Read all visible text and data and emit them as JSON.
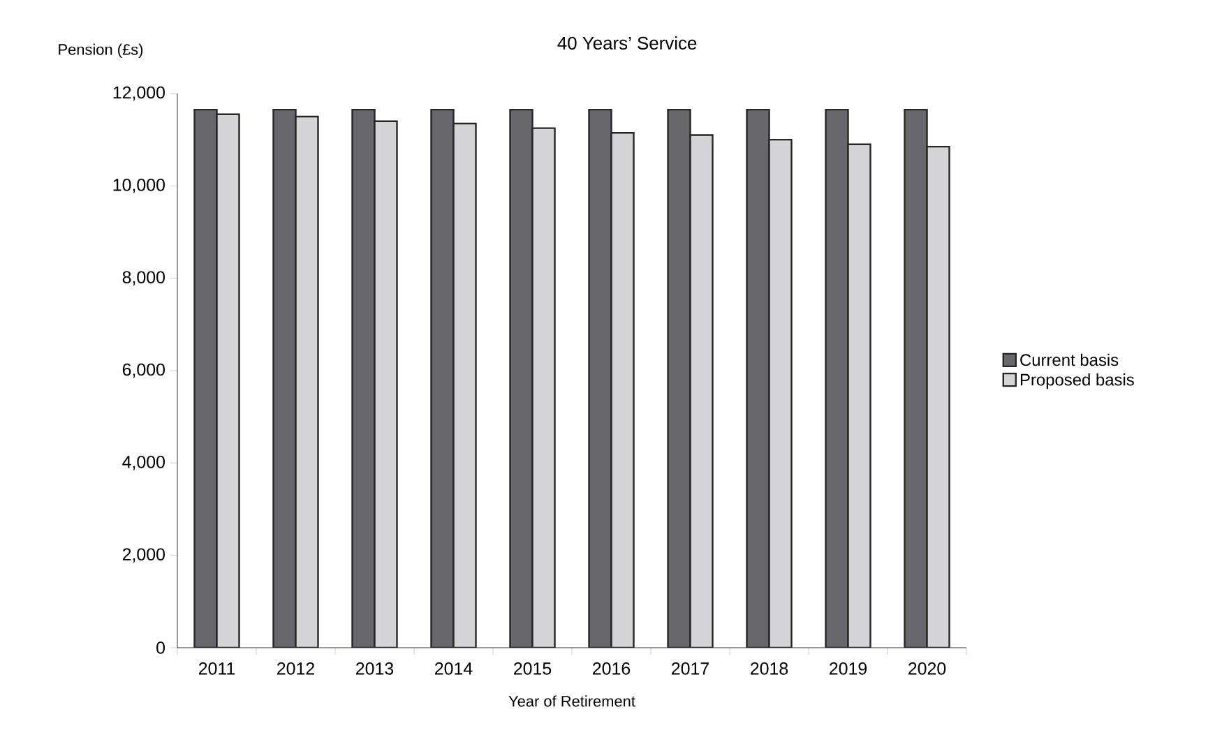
{
  "chart_data": {
    "type": "bar",
    "title": "40 Years’ Service",
    "xlabel": "Year of Retirement",
    "ylabel": "Pension (£s)",
    "categories": [
      "2011",
      "2012",
      "2013",
      "2014",
      "2015",
      "2016",
      "2017",
      "2018",
      "2019",
      "2020"
    ],
    "series": [
      {
        "name": "Current  basis",
        "color": "#68686c",
        "values": [
          11650,
          11650,
          11650,
          11650,
          11650,
          11650,
          11650,
          11650,
          11650,
          11650
        ]
      },
      {
        "name": "Proposed basis",
        "color": "#d4d4d6",
        "values": [
          11550,
          11500,
          11400,
          11350,
          11250,
          11150,
          11100,
          11000,
          10900,
          10850
        ]
      }
    ],
    "ylim": [
      0,
      12000
    ],
    "yticks": [
      {
        "value": 0,
        "label": "0"
      },
      {
        "value": 2000,
        "label": "2,000"
      },
      {
        "value": 4000,
        "label": "4,000"
      },
      {
        "value": 6000,
        "label": "6,000"
      },
      {
        "value": 8000,
        "label": "8,000"
      },
      {
        "value": 10000,
        "label": "10,000"
      },
      {
        "value": 12000,
        "label": "12,000"
      }
    ],
    "legend": "right"
  }
}
